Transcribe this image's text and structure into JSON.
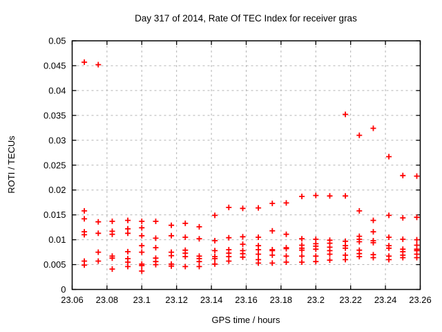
{
  "window": {
    "background": "#ffffff"
  },
  "chart_data": {
    "type": "scatter",
    "title": "Day 317 of 2014, Rate Of TEC Index for receiver gras",
    "xlabel": "GPS time / hours",
    "ylabel": "ROTI / TECUs",
    "xlim": [
      23.06,
      23.26
    ],
    "ylim": [
      0,
      0.05
    ],
    "grid": true,
    "legend_position": "none",
    "xticks": {
      "values": [
        23.06,
        23.08,
        23.1,
        23.12,
        23.14,
        23.16,
        23.18,
        23.2,
        23.22,
        23.24,
        23.26
      ],
      "labels": [
        "23.06",
        "23.08",
        "23.1",
        "23.12",
        "23.14",
        "23.16",
        "23.18",
        "23.2",
        "23.22",
        "23.24",
        "23.26"
      ]
    },
    "yticks": {
      "values": [
        0,
        0.005,
        0.01,
        0.015,
        0.02,
        0.025,
        0.03,
        0.035,
        0.04,
        0.045,
        0.05
      ],
      "labels": [
        "0",
        "0.005",
        "0.01",
        "0.015",
        "0.02",
        "0.025",
        "0.03",
        "0.035",
        "0.04",
        "0.045",
        "0.05"
      ]
    },
    "style": {
      "marker_shape": "plus",
      "marker_color": "#ff0000",
      "marker_size": 8,
      "grid_color": "#b4b4b4",
      "border_color": "#000000",
      "text_color": "#000000"
    },
    "series": [
      {
        "name": "ROTI",
        "points": [
          [
            23.067,
            0.0457
          ],
          [
            23.067,
            0.0158
          ],
          [
            23.067,
            0.0142
          ],
          [
            23.067,
            0.0116
          ],
          [
            23.067,
            0.011
          ],
          [
            23.067,
            0.0057
          ],
          [
            23.067,
            0.0049
          ],
          [
            23.075,
            0.0452
          ],
          [
            23.075,
            0.0136
          ],
          [
            23.075,
            0.0113
          ],
          [
            23.075,
            0.0075
          ],
          [
            23.075,
            0.0057
          ],
          [
            23.083,
            0.0137
          ],
          [
            23.083,
            0.0117
          ],
          [
            23.083,
            0.0111
          ],
          [
            23.083,
            0.0067
          ],
          [
            23.083,
            0.0063
          ],
          [
            23.083,
            0.0041
          ],
          [
            23.092,
            0.0139
          ],
          [
            23.092,
            0.0122
          ],
          [
            23.092,
            0.0113
          ],
          [
            23.092,
            0.0076
          ],
          [
            23.092,
            0.0062
          ],
          [
            23.092,
            0.0055
          ],
          [
            23.092,
            0.0046
          ],
          [
            23.1,
            0.0137
          ],
          [
            23.1,
            0.0124
          ],
          [
            23.1,
            0.0108
          ],
          [
            23.1,
            0.0088
          ],
          [
            23.1,
            0.0075
          ],
          [
            23.1,
            0.0051
          ],
          [
            23.1,
            0.0048
          ],
          [
            23.1,
            0.0037
          ],
          [
            23.108,
            0.0137
          ],
          [
            23.108,
            0.0103
          ],
          [
            23.108,
            0.0084
          ],
          [
            23.108,
            0.0063
          ],
          [
            23.108,
            0.0056
          ],
          [
            23.108,
            0.005
          ],
          [
            23.117,
            0.0129
          ],
          [
            23.117,
            0.0108
          ],
          [
            23.117,
            0.0075
          ],
          [
            23.117,
            0.0068
          ],
          [
            23.117,
            0.0051
          ],
          [
            23.117,
            0.0047
          ],
          [
            23.125,
            0.0133
          ],
          [
            23.125,
            0.0105
          ],
          [
            23.125,
            0.0079
          ],
          [
            23.125,
            0.0073
          ],
          [
            23.125,
            0.0066
          ],
          [
            23.125,
            0.0046
          ],
          [
            23.133,
            0.0126
          ],
          [
            23.133,
            0.0102
          ],
          [
            23.133,
            0.0067
          ],
          [
            23.133,
            0.0062
          ],
          [
            23.133,
            0.0056
          ],
          [
            23.133,
            0.0046
          ],
          [
            23.142,
            0.0149
          ],
          [
            23.142,
            0.0098
          ],
          [
            23.142,
            0.0078
          ],
          [
            23.142,
            0.0066
          ],
          [
            23.142,
            0.0062
          ],
          [
            23.142,
            0.0051
          ],
          [
            23.15,
            0.0165
          ],
          [
            23.15,
            0.0104
          ],
          [
            23.15,
            0.008
          ],
          [
            23.15,
            0.0073
          ],
          [
            23.15,
            0.0066
          ],
          [
            23.15,
            0.0057
          ],
          [
            23.158,
            0.0163
          ],
          [
            23.158,
            0.0106
          ],
          [
            23.158,
            0.0091
          ],
          [
            23.158,
            0.0078
          ],
          [
            23.158,
            0.0072
          ],
          [
            23.158,
            0.0065
          ],
          [
            23.167,
            0.0164
          ],
          [
            23.167,
            0.0105
          ],
          [
            23.167,
            0.0088
          ],
          [
            23.167,
            0.008
          ],
          [
            23.167,
            0.0071
          ],
          [
            23.167,
            0.006
          ],
          [
            23.167,
            0.0053
          ],
          [
            23.175,
            0.0173
          ],
          [
            23.175,
            0.0118
          ],
          [
            23.175,
            0.008
          ],
          [
            23.175,
            0.0078
          ],
          [
            23.175,
            0.0069
          ],
          [
            23.175,
            0.0053
          ],
          [
            23.183,
            0.0174
          ],
          [
            23.183,
            0.0111
          ],
          [
            23.183,
            0.0084
          ],
          [
            23.183,
            0.0082
          ],
          [
            23.183,
            0.0067
          ],
          [
            23.183,
            0.0055
          ],
          [
            23.192,
            0.0187
          ],
          [
            23.192,
            0.0102
          ],
          [
            23.192,
            0.0089
          ],
          [
            23.192,
            0.0083
          ],
          [
            23.192,
            0.0079
          ],
          [
            23.192,
            0.0067
          ],
          [
            23.192,
            0.0055
          ],
          [
            23.2,
            0.0189
          ],
          [
            23.2,
            0.0101
          ],
          [
            23.2,
            0.0092
          ],
          [
            23.2,
            0.0087
          ],
          [
            23.2,
            0.0081
          ],
          [
            23.2,
            0.0067
          ],
          [
            23.2,
            0.0056
          ],
          [
            23.208,
            0.0188
          ],
          [
            23.208,
            0.0099
          ],
          [
            23.208,
            0.0093
          ],
          [
            23.208,
            0.0085
          ],
          [
            23.208,
            0.0078
          ],
          [
            23.208,
            0.0071
          ],
          [
            23.208,
            0.0059
          ],
          [
            23.217,
            0.0352
          ],
          [
            23.217,
            0.0188
          ],
          [
            23.217,
            0.0097
          ],
          [
            23.217,
            0.0088
          ],
          [
            23.217,
            0.0083
          ],
          [
            23.217,
            0.0069
          ],
          [
            23.217,
            0.006
          ],
          [
            23.225,
            0.031
          ],
          [
            23.225,
            0.0158
          ],
          [
            23.225,
            0.0107
          ],
          [
            23.225,
            0.0101
          ],
          [
            23.225,
            0.0096
          ],
          [
            23.225,
            0.0079
          ],
          [
            23.225,
            0.0072
          ],
          [
            23.225,
            0.0066
          ],
          [
            23.233,
            0.0324
          ],
          [
            23.233,
            0.0139
          ],
          [
            23.233,
            0.0116
          ],
          [
            23.233,
            0.0098
          ],
          [
            23.233,
            0.0094
          ],
          [
            23.233,
            0.007
          ],
          [
            23.233,
            0.0064
          ],
          [
            23.242,
            0.0267
          ],
          [
            23.242,
            0.0149
          ],
          [
            23.242,
            0.0105
          ],
          [
            23.242,
            0.0088
          ],
          [
            23.242,
            0.0083
          ],
          [
            23.242,
            0.0067
          ],
          [
            23.242,
            0.006
          ],
          [
            23.25,
            0.0229
          ],
          [
            23.25,
            0.0144
          ],
          [
            23.25,
            0.0101
          ],
          [
            23.25,
            0.0081
          ],
          [
            23.25,
            0.0076
          ],
          [
            23.25,
            0.0069
          ],
          [
            23.25,
            0.0064
          ],
          [
            23.258,
            0.0228
          ],
          [
            23.258,
            0.0145
          ],
          [
            23.258,
            0.01
          ],
          [
            23.258,
            0.0089
          ],
          [
            23.258,
            0.0081
          ],
          [
            23.258,
            0.0078
          ],
          [
            23.258,
            0.0071
          ],
          [
            23.258,
            0.0064
          ]
        ]
      }
    ]
  }
}
